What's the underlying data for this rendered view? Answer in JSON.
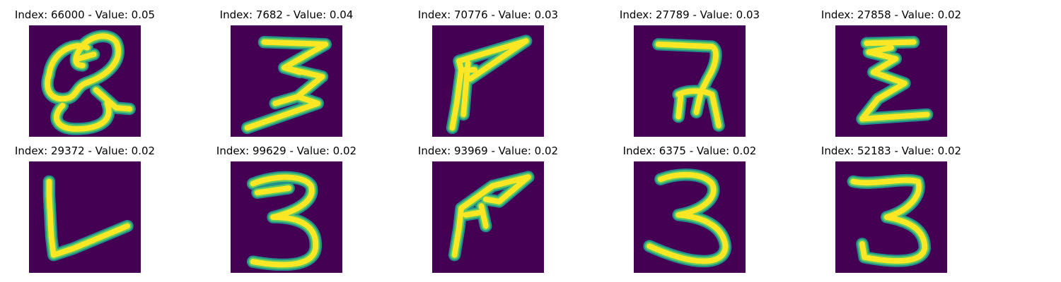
{
  "colors": {
    "background": "#440154",
    "stroke_edge": "#21918c",
    "stroke_mid": "#5ec962",
    "stroke_core": "#fde725"
  },
  "panels": [
    {
      "title": "Index: 66000 - Value: 0.05",
      "glyph": "Q"
    },
    {
      "title": "Index: 7682 - Value: 0.04",
      "glyph": "3"
    },
    {
      "title": "Index: 70776 - Value: 0.03",
      "glyph": "F"
    },
    {
      "title": "Index: 27789 - Value: 0.03",
      "glyph": "7"
    },
    {
      "title": "Index: 27858 - Value: 0.02",
      "glyph": "E"
    },
    {
      "title": "Index: 29372 - Value: 0.02",
      "glyph": "L"
    },
    {
      "title": "Index: 99629 - Value: 0.02",
      "glyph": "3"
    },
    {
      "title": "Index: 93969 - Value: 0.02",
      "glyph": "F"
    },
    {
      "title": "Index: 6375 - Value: 0.02",
      "glyph": "3"
    },
    {
      "title": "Index: 52183 - Value: 0.02",
      "glyph": "3"
    }
  ]
}
